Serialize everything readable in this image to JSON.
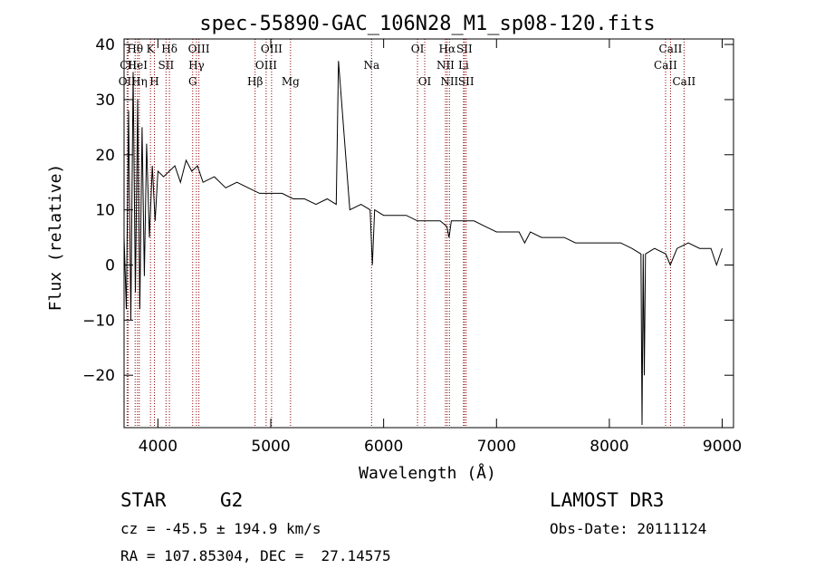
{
  "chart_data": {
    "type": "line",
    "title": "spec-55890-GAC_106N28_M1_sp08-120.fits",
    "xlabel": "Wavelength (Å)",
    "ylabel": "Flux (relative)",
    "xlim": [
      3700,
      9100
    ],
    "ylim": [
      -29.5,
      41
    ],
    "x_ticks": [
      4000,
      5000,
      6000,
      7000,
      8000,
      9000
    ],
    "y_ticks": [
      -20,
      -10,
      0,
      10,
      20,
      30,
      40
    ],
    "line_color": "#000000",
    "marker_color": "#8b0000",
    "series": [
      {
        "name": "flux",
        "x": [
          3700,
          3720,
          3740,
          3760,
          3780,
          3800,
          3820,
          3840,
          3860,
          3880,
          3900,
          3925,
          3950,
          3975,
          4000,
          4050,
          4100,
          4150,
          4200,
          4250,
          4300,
          4350,
          4400,
          4500,
          4600,
          4700,
          4800,
          4900,
          5000,
          5100,
          5200,
          5300,
          5400,
          5500,
          5580,
          5600,
          5700,
          5800,
          5880,
          5900,
          5920,
          6000,
          6100,
          6200,
          6300,
          6400,
          6500,
          6560,
          6580,
          6600,
          6700,
          6800,
          6900,
          7000,
          7100,
          7200,
          7250,
          7300,
          7400,
          7500,
          7600,
          7700,
          7800,
          7900,
          8000,
          8100,
          8200,
          8280,
          8290,
          8300,
          8310,
          8320,
          8400,
          8500,
          8540,
          8600,
          8700,
          8800,
          8900,
          8950,
          9000
        ],
        "y": [
          5,
          -8,
          28,
          -10,
          35,
          -5,
          30,
          -8,
          25,
          -2,
          22,
          5,
          18,
          8,
          17,
          16,
          17,
          18,
          15,
          19,
          17,
          18,
          15,
          16,
          14,
          15,
          14,
          13,
          13,
          13,
          12,
          12,
          11,
          12,
          11,
          37,
          10,
          11,
          10,
          0,
          10,
          9,
          9,
          9,
          8,
          8,
          8,
          7,
          5,
          8,
          8,
          8,
          7,
          6,
          6,
          6,
          4,
          6,
          5,
          5,
          5,
          4,
          4,
          4,
          4,
          4,
          3,
          2,
          -29,
          2,
          -20,
          2,
          3,
          2,
          0,
          3,
          4,
          3,
          3,
          0,
          3
        ]
      }
    ],
    "spectral_lines": [
      {
        "label": "Hθ",
        "wavelength": 3798,
        "row": 1
      },
      {
        "label": "OII",
        "wavelength": 3727,
        "row": 3
      },
      {
        "label": "CII",
        "wavelength": 3737,
        "row": 2
      },
      {
        "label": "HeI",
        "wavelength": 3819,
        "row": 2
      },
      {
        "label": "Hη",
        "wavelength": 3835,
        "row": 3
      },
      {
        "label": "K",
        "wavelength": 3934,
        "row": 1
      },
      {
        "label": "SII",
        "wavelength": 4072,
        "row": 2
      },
      {
        "label": "H",
        "wavelength": 3969,
        "row": 3
      },
      {
        "label": "Hδ",
        "wavelength": 4102,
        "row": 1
      },
      {
        "label": "OIII",
        "wavelength": 4363,
        "row": 1
      },
      {
        "label": "Hγ",
        "wavelength": 4341,
        "row": 2
      },
      {
        "label": "G",
        "wavelength": 4308,
        "row": 3
      },
      {
        "label": "OIII",
        "wavelength": 5007,
        "row": 1
      },
      {
        "label": "OIII",
        "wavelength": 4959,
        "row": 2
      },
      {
        "label": "Hβ",
        "wavelength": 4861,
        "row": 3
      },
      {
        "label": "Mg",
        "wavelength": 5175,
        "row": 3
      },
      {
        "label": "Na",
        "wavelength": 5893,
        "row": 2
      },
      {
        "label": "OI",
        "wavelength": 6300,
        "row": 1
      },
      {
        "label": "OI",
        "wavelength": 6364,
        "row": 3
      },
      {
        "label": "Hα",
        "wavelength": 6563,
        "row": 1
      },
      {
        "label": "NII",
        "wavelength": 6548,
        "row": 2
      },
      {
        "label": "NII",
        "wavelength": 6583,
        "row": 3
      },
      {
        "label": "SII",
        "wavelength": 6716,
        "row": 1
      },
      {
        "label": "Li",
        "wavelength": 6708,
        "row": 2
      },
      {
        "label": "SII",
        "wavelength": 6731,
        "row": 3
      },
      {
        "label": "CaII",
        "wavelength": 8498,
        "row": 2
      },
      {
        "label": "CaII",
        "wavelength": 8542,
        "row": 1
      },
      {
        "label": "CaII",
        "wavelength": 8662,
        "row": 3
      }
    ]
  },
  "info": {
    "class_label": "STAR",
    "subclass": "G2",
    "survey": "LAMOST DR3",
    "cz": "cz = -45.5 ± 194.9 km/s",
    "obs_date": "Obs-Date: 20111124",
    "coords": "RA = 107.85304, DEC =  27.14575"
  }
}
